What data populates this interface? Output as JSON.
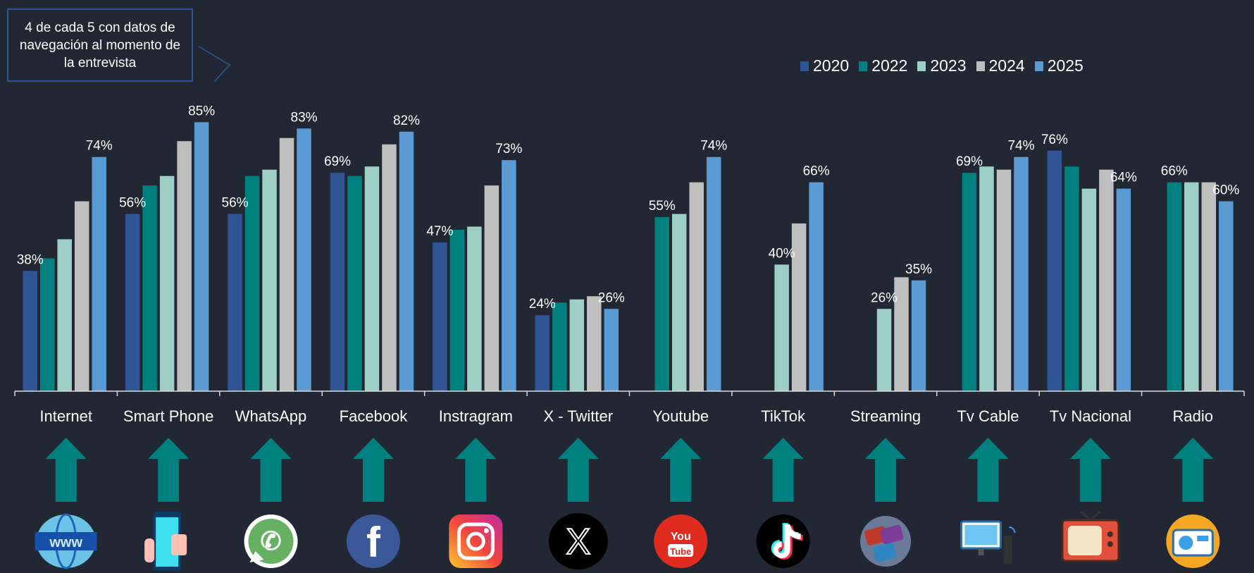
{
  "annotation": "4 de cada 5 con datos de navegación al momento de la entrevista",
  "chart_data": {
    "type": "bar",
    "title": "",
    "xlabel": "",
    "ylabel": "",
    "ylim": [
      0,
      100
    ],
    "grid": false,
    "legend_position": "top-right",
    "categories": [
      "Internet",
      "Smart Phone",
      "WhatsApp",
      "Facebook",
      "Instragram",
      "X - Twitter",
      "Youtube",
      "TikTok",
      "Streaming",
      "Tv Cable",
      "Tv Nacional",
      "Radio"
    ],
    "icons": [
      "www-globe-icon",
      "smartphone-icon",
      "whatsapp-icon",
      "facebook-icon",
      "instagram-icon",
      "x-twitter-icon",
      "youtube-icon",
      "tiktok-icon",
      "streaming-icon",
      "tv-cable-icon",
      "tv-nacional-icon",
      "radio-icon"
    ],
    "series": [
      {
        "name": "2020",
        "color": "#2f5597",
        "values": [
          38,
          56,
          56,
          69,
          47,
          24,
          null,
          null,
          null,
          null,
          76,
          null
        ]
      },
      {
        "name": "2022",
        "color": "#00807f",
        "values": [
          42,
          65,
          68,
          68,
          51,
          28,
          55,
          null,
          null,
          69,
          71,
          66
        ]
      },
      {
        "name": "2023",
        "color": "#9dcfc5",
        "values": [
          48,
          68,
          70,
          71,
          52,
          29,
          56,
          40,
          26,
          71,
          64,
          66
        ]
      },
      {
        "name": "2024",
        "color": "#bfbfbf",
        "values": [
          60,
          79,
          80,
          78,
          65,
          30,
          66,
          53,
          36,
          70,
          70,
          66
        ]
      },
      {
        "name": "2025",
        "color": "#5b9bd5",
        "values": [
          74,
          85,
          83,
          82,
          73,
          26,
          74,
          66,
          35,
          74,
          64,
          60
        ]
      }
    ],
    "data_labels": [
      {
        "category": 0,
        "series": 0,
        "text": "38%"
      },
      {
        "category": 0,
        "series": 4,
        "text": "74%"
      },
      {
        "category": 1,
        "series": 0,
        "text": "56%"
      },
      {
        "category": 1,
        "series": 4,
        "text": "85%"
      },
      {
        "category": 2,
        "series": 0,
        "text": "56%"
      },
      {
        "category": 2,
        "series": 4,
        "text": "83%"
      },
      {
        "category": 3,
        "series": 0,
        "text": "69%"
      },
      {
        "category": 3,
        "series": 4,
        "text": "82%"
      },
      {
        "category": 4,
        "series": 0,
        "text": "47%"
      },
      {
        "category": 4,
        "series": 4,
        "text": "73%"
      },
      {
        "category": 5,
        "series": 0,
        "text": "24%"
      },
      {
        "category": 5,
        "series": 4,
        "text": "26%"
      },
      {
        "category": 6,
        "series": 1,
        "text": "55%"
      },
      {
        "category": 6,
        "series": 4,
        "text": "74%"
      },
      {
        "category": 7,
        "series": 2,
        "text": "40%"
      },
      {
        "category": 7,
        "series": 4,
        "text": "66%"
      },
      {
        "category": 8,
        "series": 2,
        "text": "26%"
      },
      {
        "category": 8,
        "series": 4,
        "text": "35%"
      },
      {
        "category": 9,
        "series": 1,
        "text": "69%"
      },
      {
        "category": 9,
        "series": 4,
        "text": "74%"
      },
      {
        "category": 10,
        "series": 0,
        "text": "76%"
      },
      {
        "category": 10,
        "series": 4,
        "text": "64%"
      },
      {
        "category": 11,
        "series": 1,
        "text": "66%"
      },
      {
        "category": 11,
        "series": 4,
        "text": "60%"
      }
    ],
    "arrow_color": "#00807f"
  }
}
